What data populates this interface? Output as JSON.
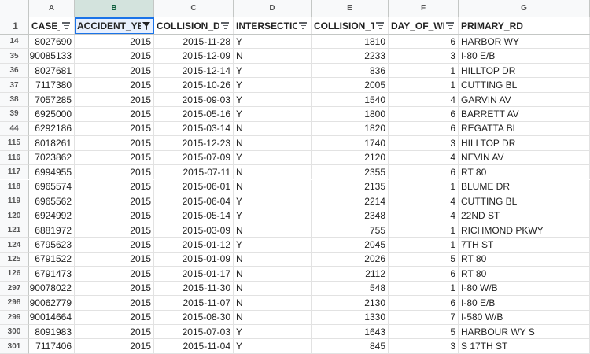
{
  "column_letters": [
    "A",
    "B",
    "C",
    "D",
    "E",
    "F",
    "G"
  ],
  "selected_column": "B",
  "header_row_number": "1",
  "headers": [
    "CASE_",
    "ACCIDENT_YEA",
    "COLLISION_DA",
    "INTERSECTIO",
    "COLLISION_TI",
    "DAY_OF_WEI",
    "PRIMARY_RD"
  ],
  "header_filter_icons": [
    "filter-icon",
    "filter-active-icon",
    "filter-icon",
    "filter-icon",
    "filter-icon",
    "filter-icon",
    "none"
  ],
  "rows": [
    {
      "n": "14",
      "cells": [
        "8027690",
        "2015",
        "2015-11-28",
        "Y",
        "1810",
        "6",
        "HARBOR WY"
      ]
    },
    {
      "n": "35",
      "cells": [
        "90085133",
        "2015",
        "2015-12-09",
        "N",
        "2233",
        "3",
        "I-80 E/B"
      ]
    },
    {
      "n": "36",
      "cells": [
        "8027681",
        "2015",
        "2015-12-14",
        "Y",
        "836",
        "1",
        "HILLTOP DR"
      ]
    },
    {
      "n": "37",
      "cells": [
        "7117380",
        "2015",
        "2015-10-26",
        "Y",
        "2005",
        "1",
        "CUTTING BL"
      ]
    },
    {
      "n": "38",
      "cells": [
        "7057285",
        "2015",
        "2015-09-03",
        "Y",
        "1540",
        "4",
        "GARVIN AV"
      ]
    },
    {
      "n": "39",
      "cells": [
        "6925000",
        "2015",
        "2015-05-16",
        "Y",
        "1800",
        "6",
        "BARRETT AV"
      ]
    },
    {
      "n": "44",
      "cells": [
        "6292186",
        "2015",
        "2015-03-14",
        "N",
        "1820",
        "6",
        "REGATTA BL"
      ]
    },
    {
      "n": "115",
      "cells": [
        "8018261",
        "2015",
        "2015-12-23",
        "N",
        "1740",
        "3",
        "HILLTOP DR"
      ]
    },
    {
      "n": "116",
      "cells": [
        "7023862",
        "2015",
        "2015-07-09",
        "Y",
        "2120",
        "4",
        "NEVIN AV"
      ]
    },
    {
      "n": "117",
      "cells": [
        "6994955",
        "2015",
        "2015-07-11",
        "N",
        "2355",
        "6",
        "RT 80"
      ]
    },
    {
      "n": "118",
      "cells": [
        "6965574",
        "2015",
        "2015-06-01",
        "N",
        "2135",
        "1",
        "BLUME DR"
      ]
    },
    {
      "n": "119",
      "cells": [
        "6965562",
        "2015",
        "2015-06-04",
        "Y",
        "2214",
        "4",
        "CUTTING BL"
      ]
    },
    {
      "n": "120",
      "cells": [
        "6924992",
        "2015",
        "2015-05-14",
        "Y",
        "2348",
        "4",
        "22ND ST"
      ]
    },
    {
      "n": "121",
      "cells": [
        "6881972",
        "2015",
        "2015-03-09",
        "N",
        "755",
        "1",
        "RICHMOND PKWY"
      ]
    },
    {
      "n": "124",
      "cells": [
        "6795623",
        "2015",
        "2015-01-12",
        "Y",
        "2045",
        "1",
        "7TH ST"
      ]
    },
    {
      "n": "125",
      "cells": [
        "6791522",
        "2015",
        "2015-01-09",
        "N",
        "2026",
        "5",
        "RT 80"
      ]
    },
    {
      "n": "126",
      "cells": [
        "6791473",
        "2015",
        "2015-01-17",
        "N",
        "2112",
        "6",
        "RT 80"
      ]
    },
    {
      "n": "297",
      "cells": [
        "90078022",
        "2015",
        "2015-11-30",
        "N",
        "548",
        "1",
        "I-80 W/B"
      ]
    },
    {
      "n": "298",
      "cells": [
        "90062779",
        "2015",
        "2015-11-07",
        "N",
        "2130",
        "6",
        "I-80 E/B"
      ]
    },
    {
      "n": "299",
      "cells": [
        "90014664",
        "2015",
        "2015-08-30",
        "N",
        "1330",
        "7",
        "I-580 W/B"
      ]
    },
    {
      "n": "300",
      "cells": [
        "8091983",
        "2015",
        "2015-07-03",
        "Y",
        "1643",
        "5",
        "HARBOUR WY S"
      ]
    },
    {
      "n": "301",
      "cells": [
        "7117406",
        "2015",
        "2015-11-04",
        "Y",
        "845",
        "3",
        "S 17TH ST"
      ]
    }
  ],
  "colors": {
    "grid_line": "#e2e2e2",
    "header_bg": "#f8f9fa",
    "selection_bg": "#d3e3dd",
    "active_outline": "#1a73e8"
  }
}
